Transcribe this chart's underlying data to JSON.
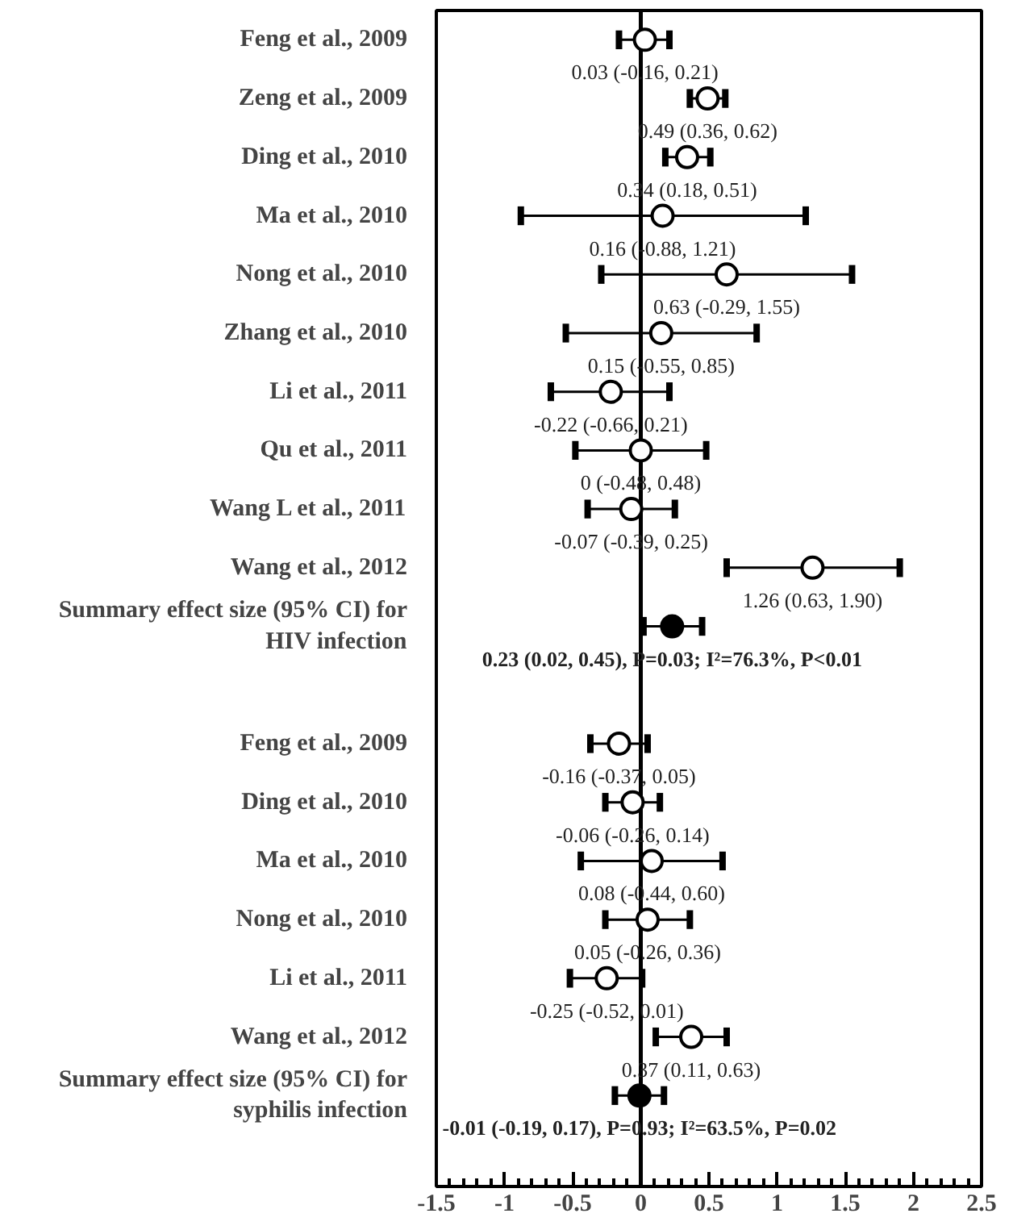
{
  "chart_data": {
    "type": "scatter",
    "orientation": "horizontal",
    "categories": [
      "Feng et al., 2009",
      "Zeng et al., 2009",
      "Ding et al., 2010",
      "Ma et al., 2010",
      "Nong et al., 2010",
      "Zhang et al., 2010",
      "Li et al., 2011",
      "Qu et al., 2011",
      "Wang L et al., 2011",
      "Wang et al., 2012",
      "Summary effect size (95% CI) for\nHIV infection",
      null,
      "Feng et al., 2009",
      "Ding et al., 2010",
      "Ma et al., 2010",
      "Nong et al., 2010",
      "Li et al., 2011",
      "Wang et al., 2012",
      "Summary effect size (95% CI) for\nsyphilis infection"
    ],
    "series": [
      {
        "color": "#ffffff",
        "values": [
          0.03,
          0.49,
          0.34,
          0.16,
          0.63,
          0.15,
          -0.22,
          0,
          -0.07,
          1.26,
          null,
          null,
          -0.16,
          -0.06,
          0.08,
          0.05,
          -0.25,
          0.37,
          null
        ],
        "errors": [
          [
            -0.16,
            0.21
          ],
          [
            0.36,
            0.62
          ],
          [
            0.18,
            0.51
          ],
          [
            -0.88,
            1.21
          ],
          [
            -0.29,
            1.55
          ],
          [
            -0.55,
            0.85
          ],
          [
            -0.66,
            0.21
          ],
          [
            -0.48,
            0.48
          ],
          [
            -0.39,
            0.25
          ],
          [
            0.63,
            1.9
          ],
          null,
          null,
          [
            -0.37,
            0.05
          ],
          [
            -0.26,
            0.14
          ],
          [
            -0.44,
            0.6
          ],
          [
            -0.26,
            0.36
          ],
          [
            -0.52,
            0.01
          ],
          [
            0.11,
            0.63
          ],
          null
        ],
        "value_labels": [
          "0.03 (-0.16, 0.21)",
          "0.49 (0.36, 0.62)",
          "0.34 (0.18, 0.51)",
          "0.16 (-0.88, 1.21)",
          "0.63 (-0.29, 1.55)",
          "0.15 (-0.55, 0.85)",
          "-0.22 (-0.66, 0.21)",
          "0 (-0.48, 0.48)",
          "-0.07 (-0.39, 0.25)",
          "1.26 (0.63, 1.90)",
          null,
          null,
          "-0.16 (-0.37, 0.05)",
          "-0.06 (-0.26, 0.14)",
          "0.08 (-0.44, 0.60)",
          "0.05 (-0.26, 0.36)",
          "-0.25 (-0.52, 0.01)",
          "0.37 (0.11, 0.63)",
          null
        ]
      },
      {
        "color": "#000000",
        "values": [
          null,
          null,
          null,
          null,
          null,
          null,
          null,
          null,
          null,
          null,
          0.23,
          null,
          null,
          null,
          null,
          null,
          null,
          null,
          -0.01
        ],
        "errors": [
          null,
          null,
          null,
          null,
          null,
          null,
          null,
          null,
          null,
          null,
          [
            0.02,
            0.45
          ],
          null,
          null,
          null,
          null,
          null,
          null,
          null,
          [
            -0.19,
            0.17
          ]
        ],
        "value_labels": [
          null,
          null,
          null,
          null,
          null,
          null,
          null,
          null,
          null,
          null,
          "0.23 (0.02, 0.45), P=0.03; I²=76.3%, P<0.01",
          null,
          null,
          null,
          null,
          null,
          null,
          null,
          "-0.01 (-0.19, 0.17), P=0.93; I²=63.5%, P=0.02"
        ]
      }
    ],
    "xlim": [
      -1.5,
      2.5
    ],
    "xticks": [
      -1.5,
      -1,
      -0.5,
      0,
      0.5,
      1,
      1.5,
      2,
      2.5
    ],
    "ref_lines": [
      {
        "axis": "x",
        "value": 0
      }
    ],
    "marker": "circle",
    "grid": false
  }
}
